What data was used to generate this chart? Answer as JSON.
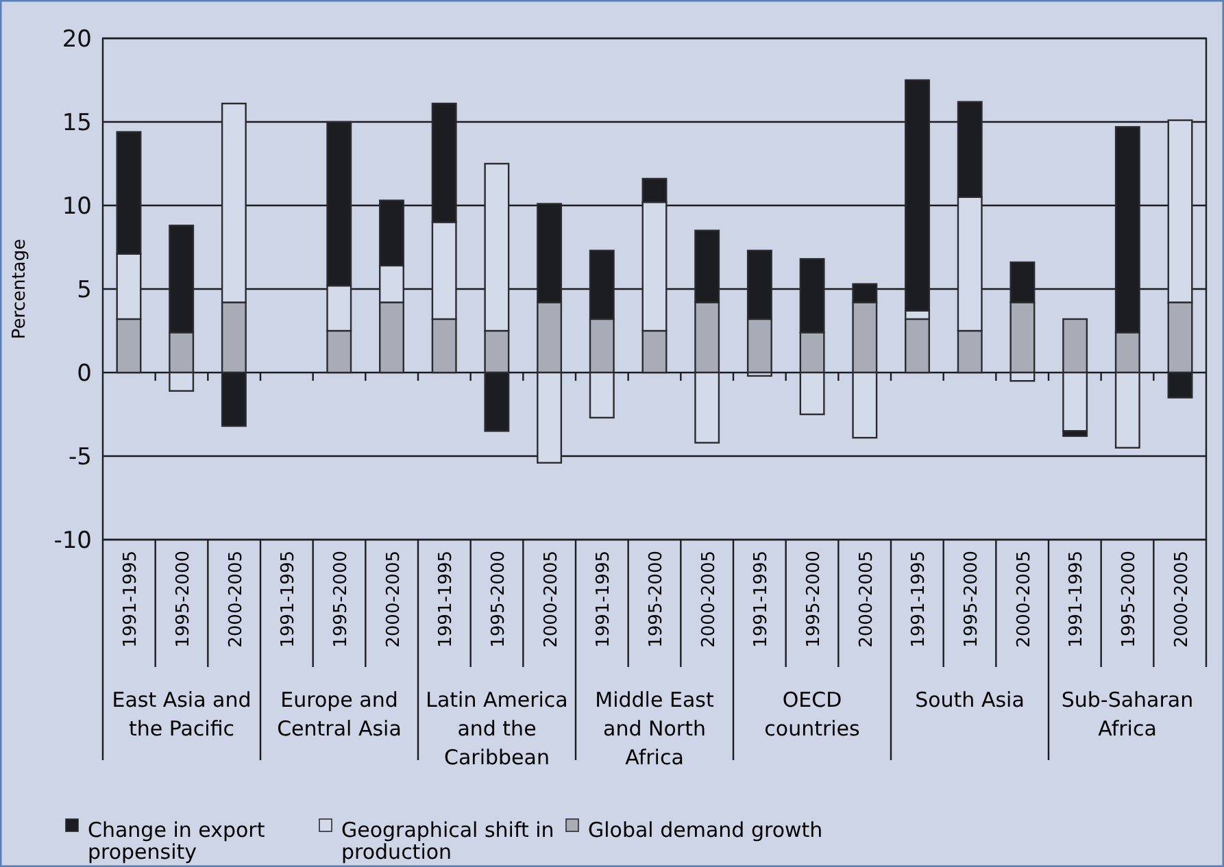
{
  "chart_data": {
    "type": "bar",
    "stacked": true,
    "ylabel": "Percentage",
    "categories": [
      "1991-1995",
      "1995-2000",
      "2000-2005",
      "1991-1995",
      "1995-2000",
      "2000-2005",
      "1991-1995",
      "1995-2000",
      "2000-2005",
      "1991-1995",
      "1995-2000",
      "2000-2005",
      "1991-1995",
      "1995-2000",
      "2000-2005",
      "1991-1995",
      "1995-2000",
      "2000-2005",
      "1991-1995",
      "1995-2000",
      "2000-2005"
    ],
    "annotations": [
      "East Asia and the Pacific",
      "Europe and Central Asia",
      "Latin America and the Caribbean",
      "Middle East and North Africa",
      "OECD countries",
      "South Asia",
      "Sub-Saharan Africa"
    ],
    "series": [
      {
        "name": "Global demand growth",
        "color": "#a8acb6",
        "values": [
          3.2,
          2.4,
          4.2,
          null,
          2.5,
          4.2,
          3.2,
          2.5,
          4.2,
          3.2,
          2.5,
          4.2,
          3.2,
          2.4,
          4.2,
          3.2,
          2.5,
          4.2,
          3.2,
          2.4,
          4.2
        ]
      },
      {
        "name": "Geographical shift in production",
        "color": "#d3dbeb",
        "values": [
          3.9,
          -1.1,
          11.9,
          null,
          2.7,
          2.2,
          5.8,
          10.0,
          -5.4,
          -2.7,
          7.7,
          -4.2,
          -0.2,
          -2.5,
          -3.9,
          0.5,
          8.0,
          -0.5,
          -3.5,
          -4.5,
          10.9
        ]
      },
      {
        "name": "Change in export propensity",
        "color": "#1c1d20",
        "values": [
          7.3,
          6.4,
          -3.2,
          null,
          9.8,
          3.9,
          7.1,
          -3.5,
          5.9,
          4.1,
          1.4,
          4.3,
          4.1,
          4.4,
          1.1,
          13.8,
          5.7,
          2.4,
          -0.3,
          12.3,
          -1.5
        ]
      }
    ],
    "ylim": [
      -10,
      20
    ],
    "yticks": [
      -10,
      -5,
      0,
      5,
      10,
      15,
      20
    ],
    "grid": "y",
    "legend": "bottom left"
  }
}
